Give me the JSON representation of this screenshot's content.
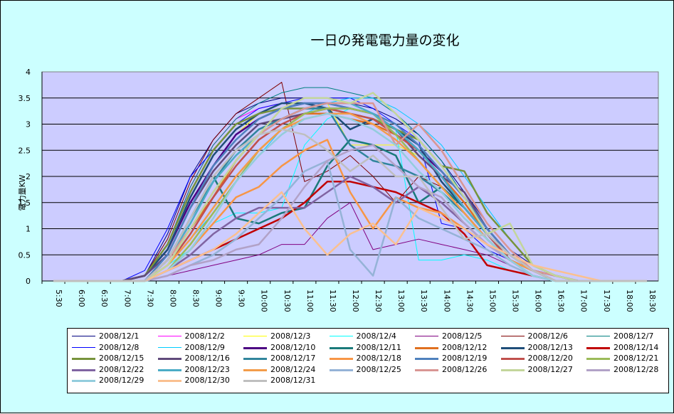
{
  "chart_data": {
    "type": "line",
    "title": "一日の発電電力量の変化",
    "ylabel": "電力量KW",
    "xlabel": "",
    "ylim": [
      0,
      4
    ],
    "yticks": [
      "0",
      "0.5",
      "1",
      "1.5",
      "2",
      "2.5",
      "3",
      "3.5",
      "4"
    ],
    "grid": true,
    "legend_position": "bottom",
    "plot_background": "#ccccff",
    "chart_background": "#ccffff",
    "categories": [
      "5:30",
      "6:00",
      "6:30",
      "7:00",
      "7:30",
      "8:00",
      "8:30",
      "9:00",
      "9:30",
      "10:00",
      "10:30",
      "11:00",
      "11:30",
      "12:00",
      "12:30",
      "13:00",
      "13:30",
      "14:00",
      "14:30",
      "15:00",
      "15:30",
      "16:00",
      "16:30",
      "17:00",
      "17:30",
      "18:00",
      "18:30"
    ],
    "series": [
      {
        "name": "2008/12/1",
        "color": "#000080",
        "width": 1,
        "values": [
          0,
          0,
          0,
          0,
          0.1,
          0.9,
          2.0,
          2.7,
          3.2,
          3.4,
          3.5,
          3.5,
          3.5,
          3.4,
          3.3,
          3.1,
          2.8,
          2.3,
          1.7,
          1.1,
          0.6,
          0.3,
          0.1,
          0,
          0,
          0,
          0
        ]
      },
      {
        "name": "2008/12/2",
        "color": "#ff00ff",
        "width": 1,
        "values": [
          0,
          0,
          0,
          0,
          0.1,
          0.7,
          1.8,
          2.6,
          3.1,
          3.3,
          3.4,
          3.4,
          3.4,
          3.3,
          3.2,
          3.0,
          2.6,
          2.1,
          1.6,
          1.0,
          0.5,
          0.2,
          0.1,
          0,
          0,
          0,
          0
        ]
      },
      {
        "name": "2008/12/3",
        "color": "#ffff00",
        "width": 1,
        "values": [
          0,
          0,
          0,
          0,
          0,
          0.5,
          1.4,
          2.2,
          2.8,
          3.2,
          3.3,
          3.4,
          3.4,
          2.6,
          2.6,
          2.6,
          2.4,
          2.0,
          1.5,
          0.9,
          0.5,
          0.2,
          0,
          0,
          0,
          0,
          0
        ]
      },
      {
        "name": "2008/12/4",
        "color": "#00ffff",
        "width": 1,
        "values": [
          0,
          0,
          0,
          0,
          0,
          0.3,
          0.6,
          1.1,
          1.3,
          1.3,
          1.4,
          2.6,
          3.1,
          3.3,
          3.2,
          2.9,
          0.4,
          0.4,
          0.5,
          0.4,
          0.2,
          0.1,
          0,
          0,
          0,
          0,
          0
        ]
      },
      {
        "name": "2008/12/5",
        "color": "#800080",
        "width": 1,
        "values": [
          0,
          0,
          0,
          0,
          0,
          0.1,
          0.2,
          0.3,
          0.4,
          0.5,
          0.7,
          0.7,
          1.2,
          1.5,
          0.6,
          0.7,
          0.8,
          0.7,
          0.6,
          0.5,
          0.3,
          0.1,
          0,
          0,
          0,
          0,
          0
        ]
      },
      {
        "name": "2008/12/6",
        "color": "#800000",
        "width": 1,
        "values": [
          0,
          0,
          0,
          0,
          0.1,
          0.8,
          1.9,
          2.7,
          3.2,
          3.5,
          3.8,
          1.9,
          2.1,
          2.4,
          2.0,
          1.5,
          2.0,
          1.8,
          1.3,
          0.8,
          0.4,
          0.2,
          0.1,
          0,
          0,
          0,
          0
        ]
      },
      {
        "name": "2008/12/7",
        "color": "#008080",
        "width": 1,
        "values": [
          0,
          0,
          0,
          0,
          0.1,
          0.7,
          1.8,
          2.6,
          3.1,
          3.4,
          3.6,
          3.7,
          3.7,
          3.6,
          3.5,
          3.2,
          2.8,
          2.3,
          1.6,
          1.0,
          0.5,
          0.2,
          0.1,
          0,
          0,
          0,
          0
        ]
      },
      {
        "name": "2008/12/8",
        "color": "#0000ff",
        "width": 1,
        "values": [
          0,
          0,
          0,
          0,
          0.2,
          1.0,
          2.0,
          2.5,
          3.0,
          3.3,
          3.4,
          3.5,
          3.5,
          3.5,
          3.3,
          3.0,
          2.7,
          1.1,
          1.0,
          0.6,
          0.4,
          0.1,
          0,
          0,
          0,
          0,
          0
        ]
      },
      {
        "name": "2008/12/9",
        "color": "#00ccff",
        "width": 1,
        "values": [
          0,
          0,
          0,
          0,
          0,
          0.3,
          0.8,
          1.3,
          1.9,
          2.4,
          2.9,
          3.2,
          3.4,
          3.5,
          3.5,
          3.3,
          3.0,
          2.6,
          2.0,
          1.4,
          0.8,
          0.3,
          0.1,
          0,
          0,
          0,
          0
        ]
      },
      {
        "name": "2008/12/10",
        "color": "#4b0082",
        "width": 2.5,
        "values": [
          0,
          0,
          0,
          0,
          0.1,
          0.6,
          1.5,
          2.2,
          2.8,
          3.1,
          3.3,
          3.4,
          3.4,
          3.3,
          3.2,
          2.9,
          2.5,
          2.1,
          1.6,
          1.0,
          0.5,
          0.2,
          0.1,
          0,
          0,
          0,
          0
        ]
      },
      {
        "name": "2008/12/11",
        "color": "#1a7a7a",
        "width": 2.5,
        "values": [
          0,
          0,
          0,
          0,
          0,
          0.4,
          1.2,
          2.0,
          1.2,
          1.1,
          1.3,
          1.4,
          2.2,
          2.7,
          2.6,
          2.4,
          1.5,
          1.8,
          1.4,
          0.9,
          0.4,
          0.2,
          0,
          0,
          0,
          0,
          0
        ]
      },
      {
        "name": "2008/12/12",
        "color": "#e07020",
        "width": 2.5,
        "values": [
          0,
          0,
          0,
          0,
          0,
          0.4,
          1.0,
          1.6,
          2.3,
          2.8,
          3.1,
          3.2,
          3.2,
          3.1,
          3.0,
          2.8,
          2.5,
          2.0,
          1.5,
          0.9,
          0.4,
          0.2,
          0,
          0,
          0,
          0,
          0
        ]
      },
      {
        "name": "2008/12/13",
        "color": "#1f4e79",
        "width": 2.5,
        "values": [
          0,
          0,
          0,
          0,
          0.1,
          0.6,
          1.6,
          2.4,
          2.9,
          3.2,
          3.4,
          3.4,
          3.3,
          2.9,
          3.1,
          2.9,
          2.6,
          1.9,
          1.4,
          0.9,
          0.4,
          0.2,
          0,
          0,
          0,
          0,
          0
        ]
      },
      {
        "name": "2008/12/14",
        "color": "#c00000",
        "width": 2.5,
        "values": [
          0,
          0,
          0,
          0,
          0,
          0.2,
          0.4,
          0.6,
          0.8,
          1.0,
          1.2,
          1.5,
          1.9,
          1.9,
          1.8,
          1.7,
          1.5,
          1.3,
          0.9,
          0.3,
          0.2,
          0.1,
          0,
          0,
          0,
          0,
          0
        ]
      },
      {
        "name": "2008/12/15",
        "color": "#77933c",
        "width": 2.5,
        "values": [
          0,
          0,
          0,
          0,
          0.1,
          0.7,
          1.7,
          2.5,
          3.0,
          3.2,
          3.3,
          3.3,
          3.3,
          3.2,
          3.1,
          2.9,
          2.7,
          2.2,
          2.1,
          1.3,
          0.8,
          0.3,
          0.1,
          0,
          0,
          0,
          0
        ]
      },
      {
        "name": "2008/12/16",
        "color": "#604a7b",
        "width": 2.5,
        "values": [
          0,
          0,
          0,
          0,
          0.1,
          0.5,
          1.4,
          2.1,
          2.6,
          3.0,
          3.1,
          3.2,
          3.3,
          3.3,
          3.2,
          2.9,
          2.4,
          2.0,
          1.7,
          1.0,
          0.5,
          0.2,
          0.1,
          0,
          0,
          0,
          0
        ]
      },
      {
        "name": "2008/12/17",
        "color": "#31859c",
        "width": 2.5,
        "values": [
          0,
          0,
          0,
          0,
          0,
          0.4,
          1.2,
          1.9,
          2.5,
          2.9,
          3.1,
          3.3,
          3.3,
          2.6,
          2.3,
          2.2,
          2.0,
          1.7,
          1.3,
          0.8,
          0.4,
          0.2,
          0,
          0,
          0,
          0,
          0
        ]
      },
      {
        "name": "2008/12/18",
        "color": "#f79646",
        "width": 2.5,
        "values": [
          0,
          0,
          0,
          0,
          0,
          0.2,
          0.6,
          1.1,
          1.6,
          1.8,
          2.2,
          2.5,
          2.7,
          1.7,
          1.0,
          1.6,
          1.4,
          1.3,
          1.0,
          0.7,
          0.4,
          0.2,
          0.1,
          0,
          0,
          0,
          0
        ]
      },
      {
        "name": "2008/12/19",
        "color": "#4f81bd",
        "width": 2.5,
        "values": [
          0,
          0,
          0,
          0,
          0,
          0.5,
          1.4,
          2.2,
          2.7,
          3.1,
          3.3,
          3.4,
          3.4,
          3.3,
          3.2,
          3.0,
          2.6,
          2.1,
          1.6,
          1.0,
          0.5,
          0.2,
          0.1,
          0,
          0,
          0,
          0
        ]
      },
      {
        "name": "2008/12/20",
        "color": "#c0504d",
        "width": 2.5,
        "values": [
          0,
          0,
          0,
          0,
          0,
          0.3,
          0.9,
          1.6,
          2.2,
          2.7,
          3.0,
          3.2,
          3.3,
          3.2,
          3.1,
          2.8,
          2.5,
          2.0,
          1.4,
          0.9,
          0.4,
          0.2,
          0,
          0,
          0,
          0,
          0
        ]
      },
      {
        "name": "2008/12/21",
        "color": "#9bbb59",
        "width": 2.5,
        "values": [
          0,
          0,
          0,
          0,
          0,
          0.2,
          0.7,
          1.3,
          1.9,
          2.5,
          2.9,
          3.2,
          3.3,
          3.3,
          3.2,
          2.8,
          2.3,
          1.8,
          1.3,
          0.8,
          0.4,
          0.1,
          0,
          0,
          0,
          0,
          0
        ]
      },
      {
        "name": "2008/12/22",
        "color": "#8064a2",
        "width": 2.5,
        "values": [
          0,
          0,
          0,
          0,
          0,
          0.2,
          0.5,
          0.9,
          1.2,
          1.4,
          1.4,
          1.4,
          1.7,
          2.0,
          1.8,
          1.5,
          1.8,
          1.5,
          1.1,
          0.7,
          0.4,
          0.1,
          0,
          0,
          0,
          0,
          0
        ]
      },
      {
        "name": "2008/12/23",
        "color": "#4bacc6",
        "width": 2.5,
        "values": [
          0,
          0,
          0,
          0,
          0,
          0.4,
          1.1,
          1.9,
          2.4,
          2.8,
          3.1,
          3.3,
          3.4,
          3.4,
          3.2,
          2.9,
          2.5,
          2.0,
          1.4,
          0.9,
          0.5,
          0.2,
          0,
          0,
          0,
          0,
          0
        ]
      },
      {
        "name": "2008/12/24",
        "color": "#f39c4a",
        "width": 2.5,
        "values": [
          0,
          0,
          0,
          0,
          0,
          0.3,
          0.8,
          1.4,
          2.0,
          2.5,
          2.9,
          3.1,
          3.2,
          3.2,
          3.0,
          2.7,
          2.3,
          1.8,
          1.3,
          0.8,
          0.4,
          0.2,
          0,
          0,
          0,
          0,
          0
        ]
      },
      {
        "name": "2008/12/25",
        "color": "#95b3d7",
        "width": 2.5,
        "values": [
          0,
          0,
          0,
          0,
          0,
          0.1,
          0.3,
          0.5,
          0.8,
          1.2,
          1.6,
          2.1,
          2.3,
          0.6,
          0.1,
          1.6,
          1.2,
          1.0,
          0.8,
          0.6,
          0.3,
          0.1,
          0,
          0,
          0,
          0,
          0
        ]
      },
      {
        "name": "2008/12/26",
        "color": "#d99694",
        "width": 2.5,
        "values": [
          0,
          0,
          0,
          0,
          0,
          0.4,
          1.0,
          1.7,
          2.3,
          2.8,
          3.1,
          3.3,
          3.4,
          3.4,
          3.4,
          2.6,
          3.0,
          2.5,
          1.8,
          1.1,
          0.6,
          0.2,
          0.1,
          0,
          0,
          0,
          0
        ]
      },
      {
        "name": "2008/12/27",
        "color": "#c3d69b",
        "width": 2.5,
        "values": [
          0,
          0,
          0,
          0,
          0,
          0.3,
          1.0,
          1.7,
          2.3,
          2.8,
          3.3,
          3.5,
          3.5,
          3.4,
          3.6,
          3.2,
          2.7,
          2.2,
          1.6,
          0.9,
          1.1,
          0.3,
          0.1,
          0,
          0,
          0,
          0
        ]
      },
      {
        "name": "2008/12/28",
        "color": "#b2a2c7",
        "width": 2.5,
        "values": [
          0,
          0,
          0,
          0,
          0,
          0.1,
          0.3,
          0.4,
          0.6,
          0.7,
          1.2,
          1.8,
          2.3,
          2.5,
          2.6,
          2.2,
          1.8,
          1.6,
          1.1,
          0.7,
          0.4,
          0.1,
          0,
          0,
          0,
          0,
          0
        ]
      },
      {
        "name": "2008/12/29",
        "color": "#93cddd",
        "width": 2.5,
        "values": [
          0,
          0,
          0,
          0,
          0,
          0.2,
          0.6,
          1.2,
          1.9,
          2.4,
          2.8,
          3.1,
          3.2,
          3.1,
          2.9,
          2.6,
          2.1,
          1.7,
          1.2,
          0.8,
          0.4,
          0.1,
          0,
          0,
          0,
          0,
          0
        ]
      },
      {
        "name": "2008/12/30",
        "color": "#fac090",
        "width": 2.5,
        "values": [
          0,
          0,
          0,
          0,
          0,
          0.2,
          0.4,
          0.6,
          0.9,
          1.3,
          1.7,
          1.0,
          0.5,
          0.9,
          1.1,
          0.7,
          1.4,
          1.2,
          1.0,
          0.7,
          0.5,
          0.3,
          0.2,
          0.1,
          0,
          0,
          0
        ]
      },
      {
        "name": "2008/12/31",
        "color": "#bfbfbf",
        "width": 2.5,
        "values": [
          0,
          0,
          0,
          0,
          0,
          0.4,
          1.2,
          2.0,
          2.5,
          2.8,
          2.9,
          2.8,
          2.5,
          2.1,
          2.4,
          2.0,
          2.0,
          1.4,
          0.8,
          0.9,
          0.5,
          0.2,
          0,
          0,
          0,
          0,
          0
        ]
      }
    ]
  }
}
